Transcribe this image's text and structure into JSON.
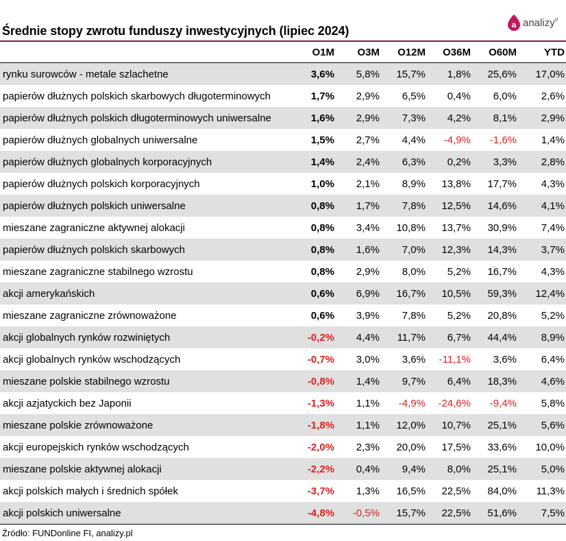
{
  "title": "Średnie stopy zwrotu funduszy inwestycyjnych (lipiec 2024)",
  "logo": {
    "text": "analizy",
    "mark": "pl"
  },
  "source": "Źródło: FUNDonline FI, analizy.pl",
  "colors": {
    "accent": "#7a1f3d",
    "negative": "#e02020",
    "row_shade": "#e0e0e0",
    "logo_drop": "#c2185b"
  },
  "chart_data": {
    "type": "table",
    "columns": [
      "",
      "O1M",
      "O3M",
      "O12M",
      "O36M",
      "O60M",
      "YTD"
    ],
    "rows": [
      [
        "rynku surowców - metale szlachetne",
        "3,6%",
        "5,8%",
        "15,7%",
        "1,8%",
        "25,6%",
        "17,0%"
      ],
      [
        "papierów dłużnych polskich skarbowych długoterminowych",
        "1,7%",
        "2,9%",
        "6,5%",
        "0,4%",
        "6,0%",
        "2,6%"
      ],
      [
        "papierów dłużnych polskich długoterminowych uniwersalne",
        "1,6%",
        "2,9%",
        "7,3%",
        "4,2%",
        "8,1%",
        "2,9%"
      ],
      [
        "papierów dłużnych globalnych uniwersalne",
        "1,5%",
        "2,7%",
        "4,4%",
        "-4,9%",
        "-1,6%",
        "1,4%"
      ],
      [
        "papierów dłużnych globalnych korporacyjnych",
        "1,4%",
        "2,4%",
        "6,3%",
        "0,2%",
        "3,3%",
        "2,8%"
      ],
      [
        "papierów dłużnych polskich korporacyjnych",
        "1,0%",
        "2,1%",
        "8,9%",
        "13,8%",
        "17,7%",
        "4,3%"
      ],
      [
        "papierów dłużnych polskich uniwersalne",
        "0,8%",
        "1,7%",
        "7,8%",
        "12,5%",
        "14,6%",
        "4,1%"
      ],
      [
        "mieszane zagraniczne aktywnej alokacji",
        "0,8%",
        "3,4%",
        "10,8%",
        "13,7%",
        "30,9%",
        "7,4%"
      ],
      [
        "papierów dłużnych polskich skarbowych",
        "0,8%",
        "1,6%",
        "7,0%",
        "12,3%",
        "14,3%",
        "3,7%"
      ],
      [
        "mieszane zagraniczne stabilnego wzrostu",
        "0,8%",
        "2,9%",
        "8,0%",
        "5,2%",
        "16,7%",
        "4,3%"
      ],
      [
        "akcji amerykańskich",
        "0,6%",
        "6,9%",
        "16,7%",
        "10,5%",
        "59,3%",
        "12,4%"
      ],
      [
        "mieszane zagraniczne zrównoważone",
        "0,6%",
        "3,9%",
        "7,8%",
        "5,2%",
        "20,8%",
        "5,2%"
      ],
      [
        "akcji globalnych rynków rozwiniętych",
        "-0,2%",
        "4,4%",
        "11,7%",
        "6,7%",
        "44,4%",
        "8,9%"
      ],
      [
        "akcji globalnych rynków wschodzących",
        "-0,7%",
        "3,0%",
        "3,6%",
        "-11,1%",
        "3,6%",
        "6,4%"
      ],
      [
        "mieszane polskie stabilnego wzrostu",
        "-0,8%",
        "1,4%",
        "9,7%",
        "6,4%",
        "18,3%",
        "4,6%"
      ],
      [
        "akcji azjatyckich bez Japonii",
        "-1,3%",
        "1,1%",
        "-4,9%",
        "-24,6%",
        "-9,4%",
        "5,8%"
      ],
      [
        "mieszane polskie zrównoważone",
        "-1,8%",
        "1,1%",
        "12,0%",
        "10,7%",
        "25,1%",
        "5,6%"
      ],
      [
        "akcji europejskich rynków wschodzących",
        "-2,0%",
        "2,3%",
        "20,0%",
        "17,5%",
        "33,6%",
        "10,0%"
      ],
      [
        "mieszane polskie aktywnej alokacji",
        "-2,2%",
        "0,4%",
        "9,4%",
        "8,0%",
        "25,1%",
        "5,0%"
      ],
      [
        "akcji polskich małych i średnich spółek",
        "-3,7%",
        "1,3%",
        "16,5%",
        "22,5%",
        "84,0%",
        "11,3%"
      ],
      [
        "akcji polskich uniwersalne",
        "-4,8%",
        "-0,5%",
        "15,7%",
        "22,5%",
        "51,6%",
        "7,5%"
      ]
    ]
  }
}
